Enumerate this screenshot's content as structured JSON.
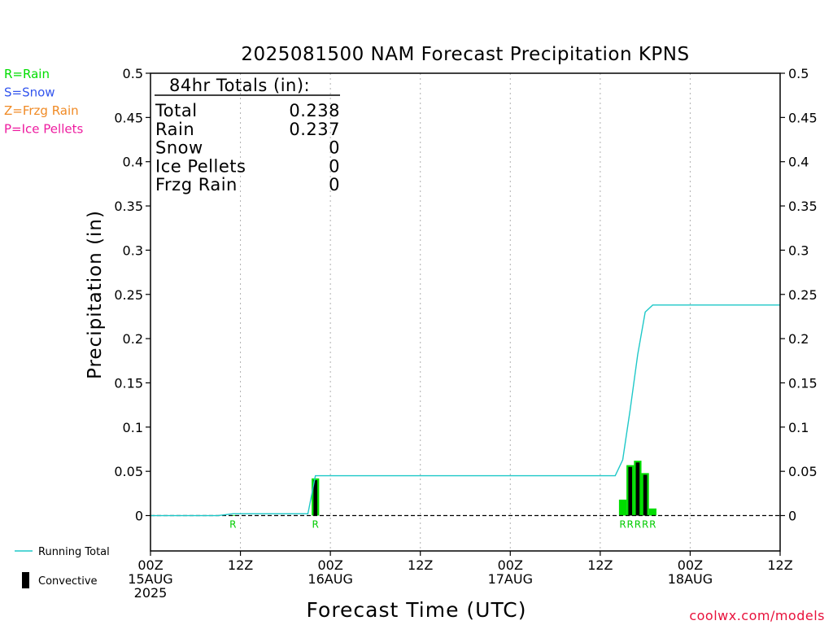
{
  "title": "2025081500 NAM Forecast Precipitation KPNS",
  "ylabel": "Precipitation (in)",
  "xlabel": "Forecast Time (UTC)",
  "credit": "coolwx.com/models",
  "precip_types": [
    {
      "label": "R=Rain",
      "color": "#00dd00"
    },
    {
      "label": "S=Snow",
      "color": "#3355ee"
    },
    {
      "label": "Z=Frzg Rain",
      "color": "#f08a24"
    },
    {
      "label": "P=Ice Pellets",
      "color": "#ee1ca0"
    }
  ],
  "totals": {
    "header": "84hr Totals (in):",
    "rows": [
      {
        "label": "Total",
        "value": "0.238"
      },
      {
        "label": "Rain",
        "value": "0.237"
      },
      {
        "label": "Snow",
        "value": "0"
      },
      {
        "label": "Ice Pellets",
        "value": "0"
      },
      {
        "label": "Frzg Rain",
        "value": "0"
      }
    ]
  },
  "legend": {
    "running_total": "Running Total",
    "convective": "Convective",
    "running_total_color": "#1ec8c8",
    "convective_color": "#000000",
    "bar_color": "#00dd00"
  },
  "chart_data": {
    "type": "bar",
    "x_unit": "forecast hour",
    "xlim": [
      0,
      84
    ],
    "ylim": [
      -0.04,
      0.5
    ],
    "yticks": [
      0,
      0.05,
      0.1,
      0.15,
      0.2,
      0.25,
      0.3,
      0.35,
      0.4,
      0.45,
      0.5
    ],
    "ytick_labels": [
      "0",
      "0.05",
      "0.1",
      "0.15",
      "0.2",
      "0.25",
      "0.3",
      "0.35",
      "0.4",
      "0.45",
      "0.5"
    ],
    "xticks": [
      {
        "hour": 0,
        "lines": [
          "00Z",
          "15AUG",
          "2025"
        ]
      },
      {
        "hour": 12,
        "lines": [
          "12Z"
        ]
      },
      {
        "hour": 24,
        "lines": [
          "00Z",
          "16AUG"
        ]
      },
      {
        "hour": 36,
        "lines": [
          "12Z"
        ]
      },
      {
        "hour": 48,
        "lines": [
          "00Z",
          "17AUG"
        ]
      },
      {
        "hour": 60,
        "lines": [
          "12Z"
        ]
      },
      {
        "hour": 72,
        "lines": [
          "00Z",
          "18AUG"
        ]
      },
      {
        "hour": 84,
        "lines": [
          "12Z"
        ]
      }
    ],
    "grid": "vertical dotted at 12Z/00Z",
    "bars": [
      {
        "hour": 11,
        "value": 0.0005,
        "convective": 0,
        "ptype": "R"
      },
      {
        "hour": 22,
        "value": 0.042,
        "convective": 0.04,
        "ptype": "R"
      },
      {
        "hour": 63,
        "value": 0.018,
        "convective": 0.0,
        "ptype": "R"
      },
      {
        "hour": 64,
        "value": 0.057,
        "convective": 0.055,
        "ptype": "R"
      },
      {
        "hour": 65,
        "value": 0.062,
        "convective": 0.06,
        "ptype": "R"
      },
      {
        "hour": 66,
        "value": 0.048,
        "convective": 0.046,
        "ptype": "R"
      },
      {
        "hour": 67,
        "value": 0.008,
        "convective": 0.0,
        "ptype": "R"
      }
    ],
    "running_total": {
      "x": [
        0,
        9,
        10,
        11,
        21,
        22,
        62,
        63,
        64,
        65,
        66,
        67,
        84
      ],
      "y": [
        0,
        0,
        0.001,
        0.002,
        0.002,
        0.045,
        0.045,
        0.063,
        0.12,
        0.182,
        0.23,
        0.238,
        0.238
      ]
    }
  }
}
